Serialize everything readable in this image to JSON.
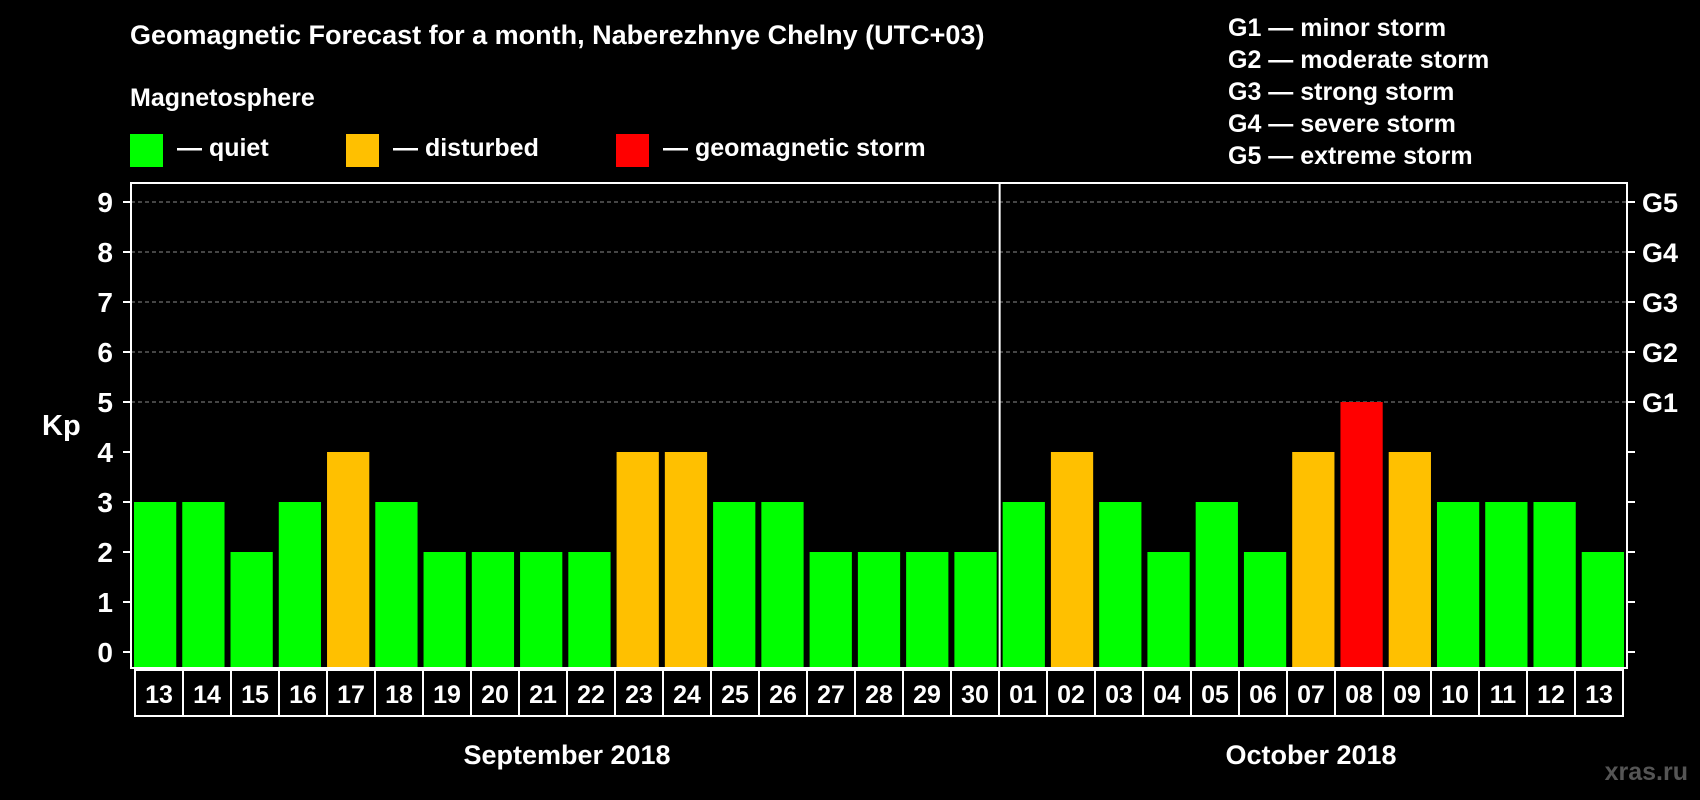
{
  "title": "Geomagnetic Forecast for a month, Naberezhnye Chelny (UTC+03)",
  "legend": {
    "heading": "Magnetosphere",
    "items": [
      {
        "label": "— quiet",
        "color": "#00ff00"
      },
      {
        "label": "— disturbed",
        "color": "#ffc000"
      },
      {
        "label": "— geomagnetic storm",
        "color": "#ff0000"
      }
    ]
  },
  "g_scale": [
    "G1 — minor storm",
    "G2 — moderate storm",
    "G3 — strong storm",
    "G4 — severe storm",
    "G5 — extreme storm"
  ],
  "watermark": "xras.ru",
  "chart_data": {
    "type": "bar",
    "title": "Geomagnetic Forecast for a month, Naberezhnye Chelny (UTC+03)",
    "ylabel": "Kp",
    "ylim": [
      0,
      9
    ],
    "yticks": [
      0,
      1,
      2,
      3,
      4,
      5,
      6,
      7,
      8,
      9
    ],
    "right_ticks": [
      {
        "value": 5,
        "label": "G1"
      },
      {
        "value": 6,
        "label": "G2"
      },
      {
        "value": 7,
        "label": "G3"
      },
      {
        "value": 8,
        "label": "G4"
      },
      {
        "value": 9,
        "label": "G5"
      }
    ],
    "categories": [
      "13",
      "14",
      "15",
      "16",
      "17",
      "18",
      "19",
      "20",
      "21",
      "22",
      "23",
      "24",
      "25",
      "26",
      "27",
      "28",
      "29",
      "30",
      "01",
      "02",
      "03",
      "04",
      "05",
      "06",
      "07",
      "08",
      "09",
      "10",
      "11",
      "12",
      "13"
    ],
    "values": [
      3,
      3,
      2,
      3,
      4,
      3,
      2,
      2,
      2,
      2,
      4,
      4,
      3,
      3,
      2,
      2,
      2,
      2,
      3,
      4,
      3,
      2,
      3,
      2,
      4,
      5,
      4,
      3,
      3,
      3,
      2
    ],
    "color_rule": {
      "quiet": "Kp <= 3",
      "disturbed": "Kp = 4",
      "geomagnetic storm": "Kp >= 5"
    },
    "months": [
      {
        "label": "September 2018",
        "start_index": 0,
        "count": 18
      },
      {
        "label": "October 2018",
        "start_index": 18,
        "count": 13
      }
    ],
    "grid": true
  }
}
